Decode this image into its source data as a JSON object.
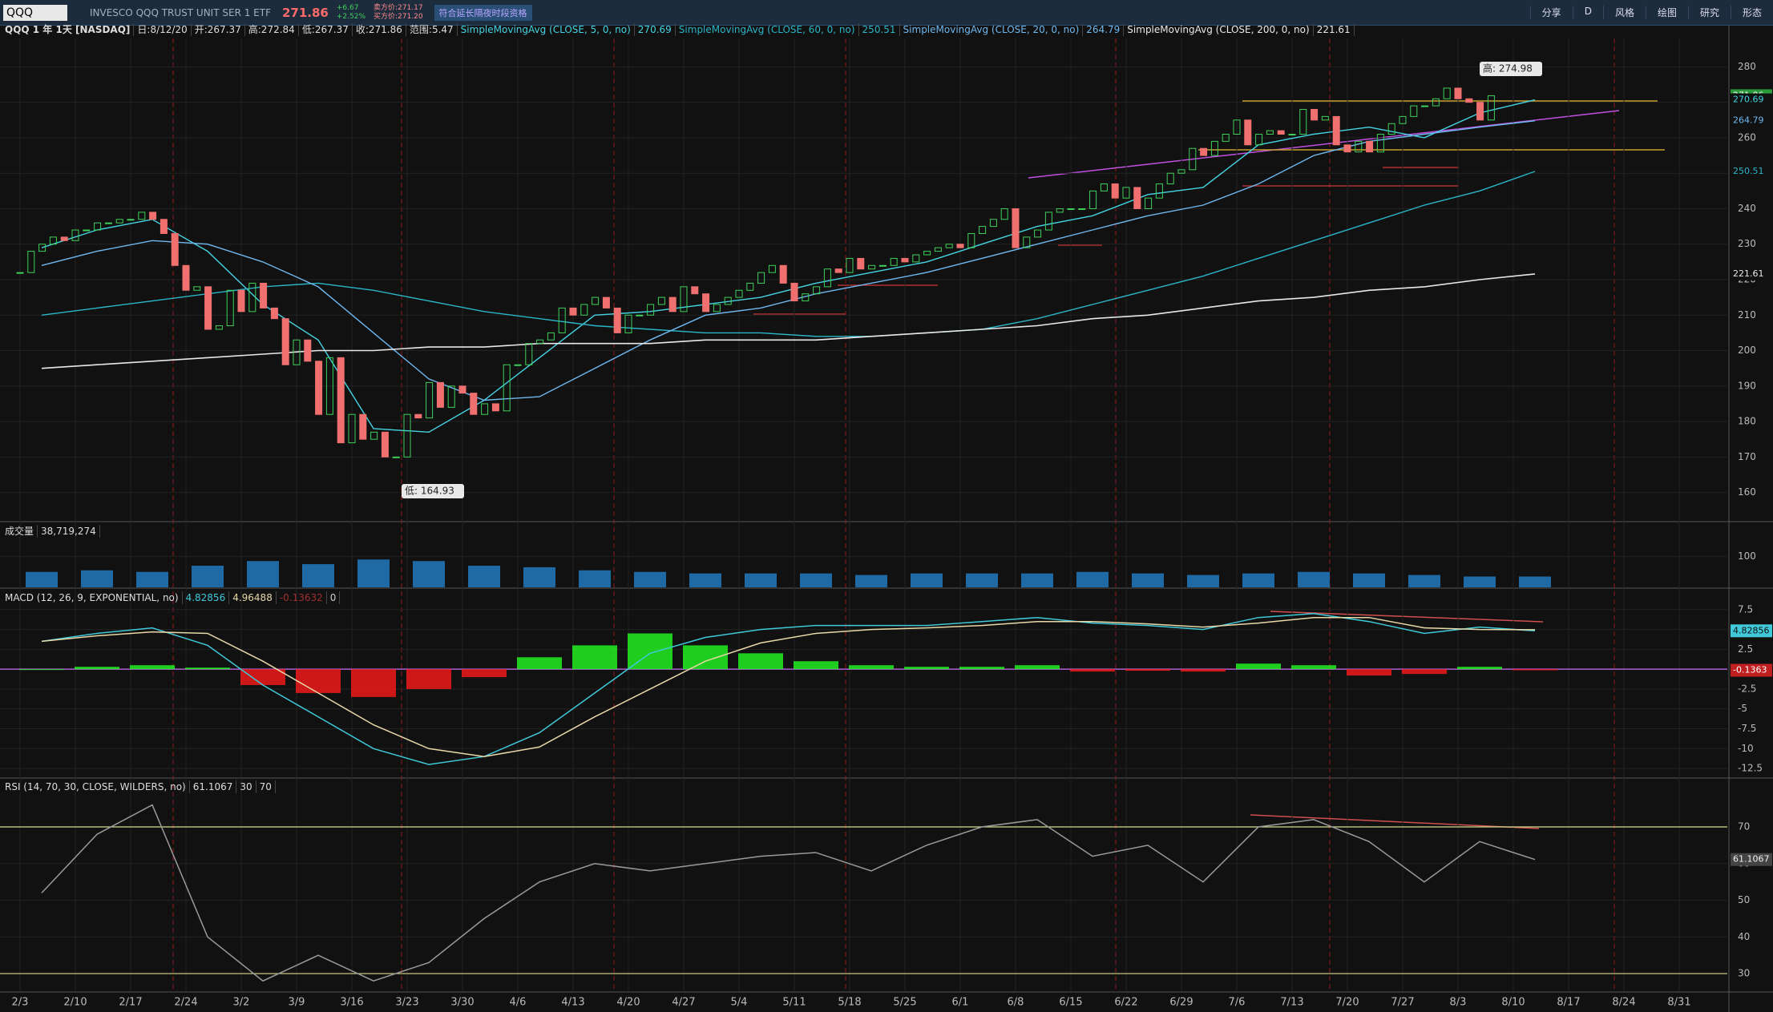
{
  "toolbar": {
    "symbol": "QQQ",
    "description": "INVESCO QQQ TRUST UNIT SER 1 ETF",
    "last": "271.86",
    "change": "+6.67",
    "change_pct": "+2.52%",
    "bid": "卖方价:271.17",
    "ask": "买方价:271.20",
    "badge": "符合延长隔夜时段资格",
    "buttons": [
      "分享",
      "D",
      "风格",
      "绘图",
      "研究",
      "形态"
    ]
  },
  "x_axis": {
    "categories": [
      "2/3",
      "2/10",
      "2/17",
      "2/24",
      "3/2",
      "3/9",
      "3/16",
      "3/23",
      "3/30",
      "4/6",
      "4/13",
      "4/20",
      "4/27",
      "5/4",
      "5/11",
      "5/18",
      "5/25",
      "6/1",
      "6/8",
      "6/15",
      "6/22",
      "6/29",
      "7/6",
      "7/13",
      "7/20",
      "7/27",
      "8/3",
      "8/10",
      "8/17",
      "8/24",
      "8/31"
    ]
  },
  "chart_data": [
    {
      "type": "candlestick",
      "header": [
        "QQQ 1 年 1天 [NASDAQ]",
        "日:8/12/20",
        "开:267.37",
        "高:272.84",
        "低:267.37",
        "收:271.86",
        "范围:5.47"
      ],
      "high_label": "高: 274.98",
      "low_label": "低: 164.93",
      "up_color": "#3fd05a",
      "down_color": "#f07070",
      "ylim": [
        152,
        288
      ],
      "yticks": [
        160,
        170,
        180,
        190,
        200,
        210,
        220,
        230,
        240,
        250,
        260,
        270,
        280
      ],
      "closes": [
        222,
        228,
        230,
        232,
        231,
        234,
        234,
        236,
        236,
        237,
        237,
        239,
        237,
        233,
        224,
        217,
        218,
        206,
        207,
        217,
        211,
        219,
        212,
        209,
        196,
        203,
        197,
        182,
        198,
        174,
        182,
        175,
        177,
        170,
        170,
        182,
        181,
        191,
        184,
        190,
        188,
        182,
        185,
        183,
        196,
        196,
        202,
        203,
        205,
        212,
        210,
        213,
        215,
        212,
        205,
        210,
        210,
        213,
        215,
        211,
        218,
        216,
        211,
        213,
        215,
        217,
        219,
        222,
        224,
        219,
        214,
        216,
        218,
        223,
        222,
        226,
        223,
        224,
        224,
        226,
        225,
        227,
        228,
        229,
        230,
        229,
        233,
        235,
        237,
        240,
        229,
        232,
        234,
        239,
        240,
        240,
        240,
        245,
        247,
        243,
        246,
        240,
        243,
        247,
        250,
        251,
        257,
        255,
        259,
        261,
        265,
        258,
        261,
        262,
        261,
        261,
        268,
        265,
        266,
        258,
        256,
        259,
        256,
        261,
        264,
        266,
        269,
        269,
        271,
        274,
        271,
        270,
        265,
        271.86
      ],
      "studies": [
        {
          "name": "SimpleMovingAvg (CLOSE, 5, 0, no)",
          "last": 270.69,
          "color": "#45d4e4",
          "values": [
            229,
            234,
            237,
            228,
            213,
            203,
            178,
            177,
            186,
            198,
            210,
            211,
            213,
            215,
            219,
            222,
            225,
            230,
            235,
            238,
            244,
            246,
            258,
            261,
            263,
            260,
            267,
            270.69
          ]
        },
        {
          "name": "SimpleMovingAvg (CLOSE, 60, 0, no)",
          "last": 250.51,
          "color": "#2bb5c8",
          "values": [
            210,
            212,
            214,
            216,
            218,
            219,
            217,
            214,
            211,
            209,
            207,
            206,
            205,
            205,
            204,
            204,
            205,
            206,
            209,
            213,
            217,
            221,
            226,
            231,
            236,
            241,
            245,
            250.51
          ]
        },
        {
          "name": "SimpleMovingAvg (CLOSE, 20, 0, no)",
          "last": 264.79,
          "color": "#6fb8f0",
          "values": [
            224,
            228,
            231,
            230,
            225,
            218,
            205,
            192,
            186,
            187,
            195,
            203,
            210,
            212,
            216,
            219,
            222,
            226,
            230,
            234,
            238,
            241,
            247,
            255,
            259,
            261,
            263,
            264.79
          ]
        },
        {
          "name": "SimpleMovingAvg (CLOSE, 200, 0, no)",
          "last": 221.61,
          "color": "#e8e8e8",
          "values": [
            195,
            196,
            197,
            198,
            199,
            200,
            200,
            201,
            201,
            202,
            202,
            202,
            203,
            203,
            203,
            204,
            205,
            206,
            207,
            209,
            210,
            212,
            214,
            215,
            217,
            218,
            220,
            221.61
          ]
        }
      ]
    },
    {
      "type": "bar",
      "title": "成交量",
      "last_label": "38,719,274",
      "color": "#1f6aa5",
      "ylim": [
        0,
        210
      ],
      "yticks": [
        100
      ],
      "values": [
        50,
        55,
        50,
        70,
        85,
        75,
        90,
        85,
        70,
        65,
        55,
        50,
        45,
        45,
        45,
        40,
        45,
        45,
        45,
        50,
        45,
        40,
        45,
        50,
        45,
        40,
        35,
        35
      ]
    },
    {
      "type": "macd",
      "title": "MACD (12, 26, 9, EXPONENTIAL, no)",
      "legend_values": [
        4.82856,
        4.96488,
        -0.13632,
        0
      ],
      "tags": [
        "4.82856",
        "-0.1363"
      ],
      "ylim": [
        -13.6,
        10
      ],
      "yticks": [
        7.5,
        5,
        2.5,
        0,
        -2.5,
        -5,
        -7.5,
        -10,
        -12.5
      ],
      "histogram": {
        "pos_color": "#22ee22",
        "neg_color": "#ee1a1a",
        "values": [
          0,
          0.3,
          0.5,
          0.2,
          -2,
          -3,
          -3.5,
          -2.5,
          -1,
          1.5,
          3,
          4.5,
          3,
          2,
          1,
          0.5,
          0.3,
          0.3,
          0.5,
          -0.3,
          -0.2,
          -0.3,
          0.7,
          0.5,
          -0.8,
          -0.6,
          0.3,
          -0.13632
        ]
      },
      "series": [
        {
          "color": "#3fc9d9",
          "values": [
            3.5,
            4.5,
            5.2,
            3,
            -2,
            -6,
            -10,
            -12,
            -11,
            -8,
            -3,
            2,
            4,
            5,
            5.5,
            5.5,
            5.5,
            6,
            6.5,
            5.8,
            5.5,
            5,
            6.5,
            7,
            6,
            4.5,
            5.3,
            4.82856
          ]
        },
        {
          "color": "#e8d8a8",
          "values": [
            3.5,
            4.2,
            4.7,
            4.5,
            1,
            -3,
            -7,
            -10,
            -11,
            -9.8,
            -6,
            -2.5,
            1,
            3.3,
            4.5,
            5,
            5.2,
            5.5,
            6,
            6,
            5.7,
            5.3,
            5.8,
            6.5,
            6.5,
            5.2,
            5,
            4.96488
          ]
        }
      ]
    },
    {
      "type": "line",
      "title": "RSI (14, 70, 30, CLOSE, WILDERS, no)",
      "last": 61.1067,
      "levels": [
        30,
        70
      ],
      "color": "#9a9a9a",
      "level_color": "#d8d890",
      "ylim": [
        25.2,
        82.9
      ],
      "yticks": [
        30,
        40,
        50,
        60,
        70
      ],
      "values": [
        52,
        68,
        76,
        40,
        28,
        35,
        28,
        33,
        45,
        55,
        60,
        58,
        60,
        62,
        63,
        58,
        65,
        70,
        72,
        62,
        65,
        55,
        70,
        72,
        66,
        55,
        66,
        61.1067
      ]
    }
  ]
}
